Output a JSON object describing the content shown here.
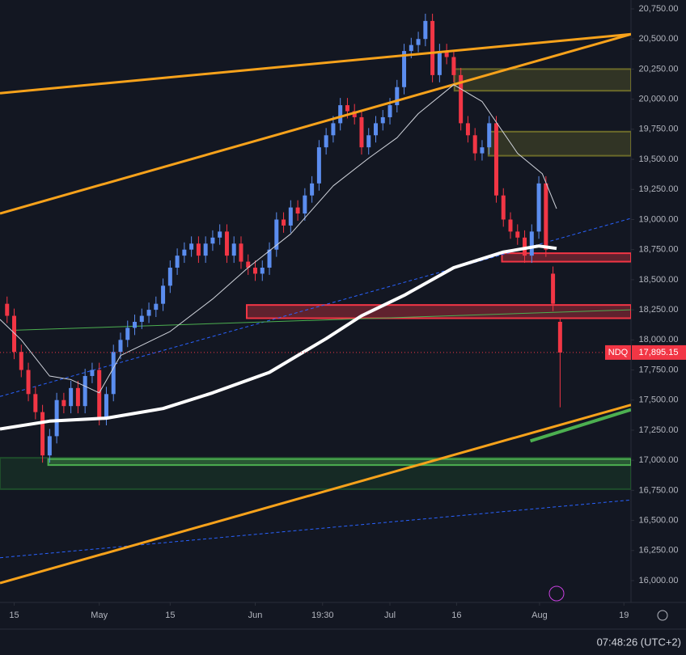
{
  "chart_data": {
    "type": "candlestick",
    "symbol": "NDQ",
    "up_color": "#5b8def",
    "down_color": "#f23645",
    "xlim": [
      -2,
      87
    ],
    "ylim": [
      15937.5,
      20812.5
    ],
    "xticks": [
      {
        "value": 0,
        "label": "15"
      },
      {
        "value": 12,
        "label": "May"
      },
      {
        "value": 22,
        "label": "15"
      },
      {
        "value": 34,
        "label": "Jun"
      },
      {
        "value": 43.5,
        "label": "19:30"
      },
      {
        "value": 53,
        "label": "Jul"
      },
      {
        "value": 62.4,
        "label": "16"
      },
      {
        "value": 74.1,
        "label": "Aug"
      },
      {
        "value": 86,
        "label": "19"
      }
    ],
    "yticks": [
      {
        "value": 16000,
        "label": "16,000.00"
      },
      {
        "value": 16250,
        "label": "16,250.00"
      },
      {
        "value": 16500,
        "label": "16,500.00"
      },
      {
        "value": 16750,
        "label": "16,750.00"
      },
      {
        "value": 17000,
        "label": "17,000.00"
      },
      {
        "value": 17250,
        "label": "17,250.00"
      },
      {
        "value": 17500,
        "label": "17,500.00"
      },
      {
        "value": 17750,
        "label": "17,750.00"
      },
      {
        "value": 18000,
        "label": "18,000.00"
      },
      {
        "value": 18250,
        "label": "18,250.00"
      },
      {
        "value": 18500,
        "label": "18,500.00"
      },
      {
        "value": 18750,
        "label": "18,750.00"
      },
      {
        "value": 19000,
        "label": "19,000.00"
      },
      {
        "value": 19250,
        "label": "19,250.00"
      },
      {
        "value": 19500,
        "label": "19,500.00"
      },
      {
        "value": 19750,
        "label": "19,750.00"
      },
      {
        "value": 20000,
        "label": "20,000.00"
      },
      {
        "value": 20250,
        "label": "20,250.00"
      },
      {
        "value": 20500,
        "label": "20,500.00"
      },
      {
        "value": 20750,
        "label": "20,750.00"
      }
    ],
    "x": [
      -1,
      0,
      1,
      2,
      3,
      4,
      5,
      6,
      7,
      8,
      9,
      10,
      11,
      12,
      13,
      14,
      15,
      16,
      17,
      18,
      19,
      20,
      21,
      22,
      23,
      24,
      25,
      26,
      27,
      28,
      29,
      30,
      31,
      32,
      33,
      34,
      35,
      36,
      37,
      38,
      39,
      40,
      41,
      42,
      43,
      44,
      45,
      46,
      47,
      48,
      49,
      50,
      51,
      52,
      53,
      54,
      55,
      56,
      57,
      58,
      59,
      60,
      61,
      62,
      63,
      64,
      65,
      66,
      67,
      68,
      69,
      70,
      71,
      72,
      73,
      74,
      75,
      76,
      77
    ],
    "open": [
      18300,
      18200,
      17900,
      17750,
      17550,
      17400,
      17040,
      17200,
      17500,
      17450,
      17600,
      17450,
      17700,
      17750,
      17350,
      17550,
      17900,
      18000,
      18100,
      18150,
      18200,
      18250,
      18300,
      18450,
      18600,
      18700,
      18750,
      18800,
      18700,
      18800,
      18850,
      18900,
      18700,
      18800,
      18650,
      18600,
      18550,
      18600,
      18750,
      19000,
      18950,
      19100,
      19050,
      19200,
      19300,
      19600,
      19700,
      19800,
      19950,
      19900,
      19850,
      19600,
      19700,
      19800,
      19850,
      19950,
      20100,
      20400,
      20450,
      20500,
      20650,
      20200,
      20400,
      20350,
      20200,
      19800,
      19700,
      19550,
      19600,
      19800,
      19200,
      19000,
      18900,
      18850,
      18700,
      18900,
      19300,
      18550,
      18150
    ],
    "high": [
      18360,
      18260,
      17960,
      17810,
      17610,
      17460,
      17260,
      17560,
      17560,
      17660,
      17660,
      17760,
      17810,
      17810,
      17610,
      17960,
      18060,
      18160,
      18210,
      18260,
      18310,
      18360,
      18510,
      18660,
      18760,
      18810,
      18860,
      18860,
      18860,
      18910,
      18960,
      18960,
      18860,
      18860,
      18710,
      18660,
      18660,
      18810,
      19060,
      19060,
      19160,
      19160,
      19260,
      19360,
      19660,
      19760,
      19860,
      20010,
      20010,
      19960,
      19910,
      19760,
      19860,
      19910,
      20010,
      20160,
      20460,
      20510,
      20560,
      20710,
      20710,
      20460,
      20460,
      20410,
      20260,
      19860,
      19760,
      19660,
      19860,
      19860,
      19260,
      19060,
      18960,
      18910,
      18960,
      19360,
      19360,
      18610,
      18180
    ],
    "low": [
      18140,
      17840,
      17690,
      17490,
      17340,
      16980,
      16980,
      17140,
      17390,
      17390,
      17390,
      17390,
      17640,
      17290,
      17290,
      17490,
      17840,
      17940,
      18040,
      18090,
      18140,
      18190,
      18240,
      18390,
      18540,
      18640,
      18690,
      18640,
      18640,
      18740,
      18790,
      18640,
      18640,
      18590,
      18540,
      18490,
      18490,
      18540,
      18690,
      18890,
      18890,
      18990,
      18990,
      19140,
      19240,
      19540,
      19640,
      19740,
      19840,
      19790,
      19540,
      19540,
      19640,
      19740,
      19790,
      19890,
      20040,
      20340,
      20390,
      20440,
      20140,
      20140,
      20290,
      20140,
      19740,
      19640,
      19490,
      19490,
      19540,
      19140,
      18940,
      18840,
      18790,
      18640,
      18640,
      18840,
      18690,
      18240,
      17440
    ],
    "close": [
      18200,
      17900,
      17750,
      17550,
      17400,
      17040,
      17200,
      17500,
      17450,
      17600,
      17450,
      17700,
      17750,
      17350,
      17550,
      17900,
      18000,
      18100,
      18150,
      18200,
      18250,
      18300,
      18450,
      18600,
      18700,
      18750,
      18800,
      18700,
      18800,
      18850,
      18900,
      18700,
      18800,
      18650,
      18600,
      18550,
      18600,
      18750,
      19000,
      18950,
      19100,
      19050,
      19200,
      19300,
      19600,
      19700,
      19800,
      19950,
      19900,
      19850,
      19600,
      19700,
      19800,
      19850,
      19950,
      20100,
      20400,
      20450,
      20500,
      20650,
      20200,
      20400,
      20350,
      20200,
      19800,
      19700,
      19550,
      19600,
      19800,
      19200,
      19000,
      18900,
      18850,
      18700,
      18900,
      19300,
      18750,
      18300,
      17895
    ],
    "zones": [
      {
        "color": "#6b6a2a",
        "border": "#6b6a2a",
        "x": [
          62.1,
          87
        ],
        "range": [
          20250,
          20070
        ]
      },
      {
        "color": "#6b6a2a",
        "border": "#6b6a2a",
        "x": [
          66.9,
          87
        ],
        "range": [
          19730,
          19530
        ]
      },
      {
        "color": "#f23645",
        "border": "#f23645",
        "x": [
          68.8,
          87
        ],
        "range": [
          18720,
          18650
        ]
      },
      {
        "color": "#f23645",
        "border": "#f23645",
        "x": [
          32.8,
          87
        ],
        "range": [
          18290,
          18180
        ]
      },
      {
        "color": "#1e4d2b",
        "border": "#1e4d2b",
        "x": [
          -2,
          87
        ],
        "range": [
          17020,
          16760
        ]
      },
      {
        "color": "#4caf50",
        "border": "#4caf50",
        "x": [
          4.8,
          87
        ],
        "range": [
          17010,
          16960
        ]
      }
    ],
    "lines": [
      {
        "color": "#2962ff",
        "width": 1,
        "dash": true,
        "x": [
          -2,
          87
        ],
        "values": [
          17530,
          19010
        ]
      },
      {
        "color": "#2962ff",
        "width": 1,
        "dash": true,
        "x": [
          -2,
          87
        ],
        "values": [
          16190,
          16670
        ]
      },
      {
        "color": "#4caf50",
        "width": 1,
        "dash": false,
        "x": [
          0,
          87
        ],
        "values": [
          18080,
          18250
        ]
      },
      {
        "color": "#f7a21b",
        "width": 3,
        "dash": false,
        "x": [
          -2,
          87
        ],
        "values": [
          20050,
          20540
        ]
      },
      {
        "color": "#f7a21b",
        "width": 3,
        "dash": false,
        "x": [
          -2,
          87
        ],
        "values": [
          19050,
          20540
        ]
      },
      {
        "color": "#f7a21b",
        "width": 3,
        "dash": false,
        "x": [
          -2,
          87
        ],
        "values": [
          15980,
          17460
        ]
      },
      {
        "color": "#4caf50",
        "width": 4,
        "dash": false,
        "x": [
          72.8,
          87
        ],
        "values": [
          17160,
          17420
        ]
      },
      {
        "color": "#ffffff",
        "width": 4,
        "dash": false,
        "x": [
          -2,
          5,
          13,
          21,
          28,
          36,
          44,
          49,
          55,
          62,
          69,
          74,
          76.5
        ],
        "values": [
          17260,
          17325,
          17350,
          17430,
          17560,
          17730,
          18010,
          18200,
          18370,
          18600,
          18730,
          18780,
          18760
        ]
      },
      {
        "color": "#d1d4dc",
        "width": 1,
        "dash": false,
        "x": [
          -2,
          1,
          5,
          8,
          12,
          15,
          22,
          28,
          33,
          39,
          45,
          50,
          54,
          57,
          62,
          66,
          71,
          74.5,
          76.5
        ],
        "values": [
          18170,
          18000,
          17700,
          17670,
          17560,
          17870,
          18070,
          18340,
          18600,
          18880,
          19280,
          19510,
          19680,
          19880,
          20120,
          19980,
          19550,
          19380,
          19090
        ]
      }
    ],
    "last_price": {
      "value": 17895.15,
      "label": "17,895.15"
    },
    "clock": "07:48:26 (UTC+2)"
  }
}
